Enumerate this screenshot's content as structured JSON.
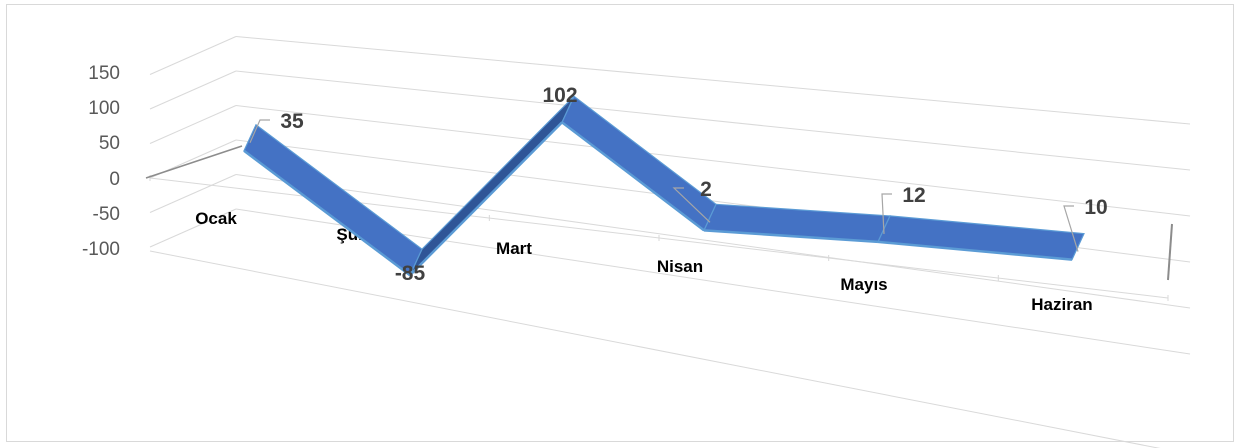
{
  "chart_data": {
    "type": "line",
    "style": "3d-ribbon",
    "categories": [
      "Ocak",
      "Şubat",
      "Mart",
      "Nisan",
      "Mayıs",
      "Haziran"
    ],
    "series": [
      {
        "values": [
          35,
          -85,
          102,
          2,
          12,
          10
        ]
      }
    ],
    "ylim": [
      -100,
      150
    ],
    "yticks": [
      "150",
      "100",
      "50",
      "0",
      "-50",
      "-100"
    ],
    "data_labels": [
      "35",
      "-85",
      "102",
      "2",
      "12",
      "10"
    ],
    "grid": true,
    "legend": "none",
    "colors": {
      "ribbon_top": "#4472c4",
      "ribbon_side": "#2f5597",
      "ribbon_edge": "#5b9bd5",
      "grid": "#d9d9d9"
    }
  }
}
